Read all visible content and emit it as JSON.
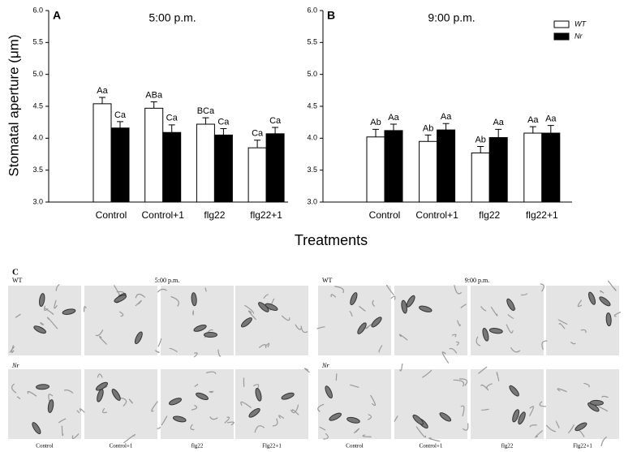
{
  "chart_data": [
    {
      "type": "bar",
      "panel": "A",
      "title": "5:00 p.m.",
      "ylabel": "Stomatal aperture (μm)",
      "categories": [
        "Control",
        "Control+1",
        "flg22",
        "flg22+1"
      ],
      "series": [
        {
          "name": "WT",
          "color": "#ffffff",
          "values": [
            4.54,
            4.47,
            4.22,
            3.85
          ],
          "errors": [
            0.1,
            0.1,
            0.1,
            0.12
          ],
          "significance_labels": [
            "Aa",
            "ABa",
            "BCa",
            "Ca"
          ]
        },
        {
          "name": "Nr",
          "color": "#000000",
          "values": [
            4.16,
            4.09,
            4.05,
            4.07
          ],
          "errors": [
            0.1,
            0.12,
            0.1,
            0.1
          ],
          "significance_labels": [
            "Ca",
            "Ca",
            "Ca",
            "Ca"
          ]
        }
      ],
      "legend": false,
      "ylim": [
        3,
        6
      ],
      "yticks": [
        {
          "value": 3,
          "label": "3.0"
        },
        {
          "value": 3.5,
          "label": "3.5"
        },
        {
          "value": 4,
          "label": "4.0"
        },
        {
          "value": 4.5,
          "label": "4.5"
        },
        {
          "value": 5,
          "label": "5.0"
        },
        {
          "value": 5.5,
          "label": "5.5"
        },
        {
          "value": 6,
          "label": "6.0"
        }
      ]
    },
    {
      "type": "bar",
      "panel": "B",
      "title": "9:00 p.m.",
      "categories": [
        "Control",
        "Control+1",
        "flg22",
        "flg22+1"
      ],
      "series": [
        {
          "name": "WT",
          "color": "#ffffff",
          "values": [
            4.02,
            3.95,
            3.77,
            4.08
          ],
          "errors": [
            0.12,
            0.1,
            0.1,
            0.1
          ],
          "significance_labels": [
            "Ab",
            "Ab",
            "Ab",
            "Aa"
          ]
        },
        {
          "name": "Nr",
          "color": "#000000",
          "values": [
            4.12,
            4.13,
            4.01,
            4.08
          ],
          "errors": [
            0.1,
            0.1,
            0.13,
            0.12
          ],
          "significance_labels": [
            "Aa",
            "Aa",
            "Aa",
            "Aa"
          ]
        }
      ],
      "legend": "top-right",
      "ylim": [
        3,
        6
      ],
      "yticks": [
        {
          "value": 3,
          "label": "3.0"
        },
        {
          "value": 3.5,
          "label": "3.5"
        },
        {
          "value": 4,
          "label": "4.0"
        },
        {
          "value": 4.5,
          "label": "4.5"
        },
        {
          "value": 5,
          "label": "5.0"
        },
        {
          "value": 5.5,
          "label": "5.5"
        },
        {
          "value": 6,
          "label": "6.0"
        }
      ]
    }
  ],
  "xlabel": "Treatments",
  "panel_c": {
    "label": "C",
    "groups": [
      {
        "time": "5:00 p.m.",
        "rows": [
          "WT",
          "Nr"
        ],
        "captions": [
          "Control",
          "Control+1",
          "flg22",
          "Flg22+1"
        ]
      },
      {
        "time": "9:00 p.m.",
        "rows": [
          "WT",
          "Nr"
        ],
        "captions": [
          "Control",
          "Control+1",
          "flg22",
          "Flg22+1"
        ]
      }
    ]
  }
}
